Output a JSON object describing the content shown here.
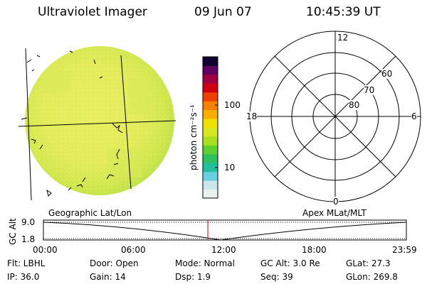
{
  "header": {
    "title": "Ultraviolet Imager",
    "date": "09 Jun 07",
    "time": "10:45:39 UT"
  },
  "colorbar": {
    "unit_label": "photon cm⁻²s⁻¹",
    "tick_high": "100",
    "tick_low": "10",
    "colors": [
      "#e8f0f0",
      "#c8e6ec",
      "#6ad0e0",
      "#20c0a0",
      "#30c060",
      "#60d030",
      "#a8e020",
      "#d8e820",
      "#f0e000",
      "#f8b000",
      "#f88000",
      "#f04000",
      "#d00010",
      "#a00040",
      "#600060",
      "#100030"
    ]
  },
  "polar_plot": {
    "label_top": "12",
    "label_left": "18",
    "label_right": "6",
    "label_bottom": "0",
    "ring_60": "60",
    "ring_70": "70",
    "ring_80": "80"
  },
  "orbit_panel": {
    "left_title": "Geographic Lat/Lon",
    "right_title": "Apex MLat/MLT",
    "axis_label": "GC Alt",
    "y_high": "9.0",
    "y_low": "1.8",
    "x_ticks": [
      "00:00",
      "06:00",
      "12:00",
      "18:00",
      "23:59"
    ],
    "current_time_marker_fraction": 0.453
  },
  "footer": {
    "filter": "Flt: LBHL",
    "door": "Door: Open",
    "mode": "Mode: Normal",
    "gc_alt": "GC Alt: 3.0 Re",
    "glat": "GLat:  27.3",
    "ip": "IP: 36.0",
    "gain": "Gain: 14",
    "dsp": "Dsp:    1.9",
    "seq": "Seq: 39",
    "glon": "GLon: 269.8"
  }
}
